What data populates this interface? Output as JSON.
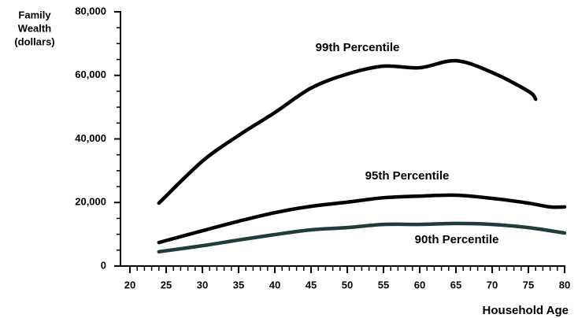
{
  "chart_data": {
    "type": "line",
    "y_label": [
      "Family",
      "Wealth",
      "(dollars)"
    ],
    "x_label": "Household Age",
    "xlim": [
      20,
      80
    ],
    "xticks": [
      20,
      25,
      30,
      35,
      40,
      45,
      50,
      55,
      60,
      65,
      70,
      75,
      80
    ],
    "ylim": [
      0,
      80000
    ],
    "yticks": [
      0,
      {
        "value": 20000,
        "label": "20,000"
      },
      {
        "value": 40000,
        "label": "40,000"
      },
      {
        "value": 60000,
        "label": "60,000"
      },
      {
        "value": 80000,
        "label": "80,000"
      }
    ],
    "series": [
      {
        "name": "99th Percentile",
        "color": "#000000",
        "x": [
          24,
          30,
          35,
          40,
          45,
          50,
          55,
          60,
          65,
          70,
          75,
          76
        ],
        "values": [
          19800,
          33000,
          41100,
          48300,
          56000,
          60400,
          62900,
          62400,
          64600,
          60900,
          55000,
          52500
        ]
      },
      {
        "name": "95th Percentile",
        "color": "#000000",
        "x": [
          24,
          30,
          35,
          40,
          45,
          50,
          55,
          60,
          65,
          70,
          75,
          78,
          80
        ],
        "values": [
          7400,
          11100,
          14100,
          16800,
          18800,
          20100,
          21500,
          22000,
          22300,
          21300,
          19800,
          18600,
          18600
        ]
      },
      {
        "name": "90th Percentile",
        "color": "#1f3d3a",
        "x": [
          24,
          30,
          35,
          40,
          45,
          50,
          55,
          60,
          65,
          70,
          75,
          80
        ],
        "values": [
          4500,
          6400,
          8200,
          9900,
          11400,
          12100,
          13100,
          13100,
          13400,
          13100,
          12100,
          10400
        ]
      }
    ]
  }
}
